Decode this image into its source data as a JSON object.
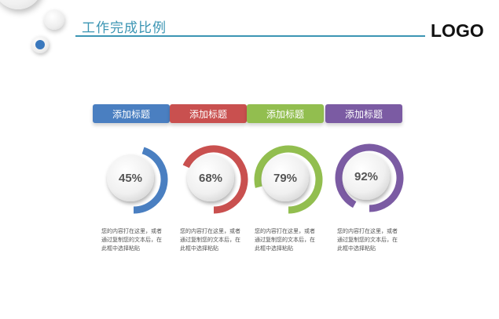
{
  "header": {
    "title": "工作完成比例",
    "logo": "LOGO"
  },
  "colors": {
    "accent": "#3b95b3",
    "blue": "#4a7fc1",
    "red": "#c9504f",
    "green": "#92be4f",
    "purple": "#7b5ba3"
  },
  "items": [
    {
      "tab": "添加标题",
      "percent": "45%",
      "value": 0.45,
      "color": "#4a7fc1",
      "desc": [
        "您的内容打在这里，或者",
        "通过复制您的文本后，在",
        "此框中选择粘贴"
      ]
    },
    {
      "tab": "添加标题",
      "percent": "68%",
      "value": 0.68,
      "color": "#c9504f",
      "desc": [
        "您的内容打在这里，或者",
        "通过复制您的文本后，在",
        "此框中选择粘贴"
      ]
    },
    {
      "tab": "添加标题",
      "percent": "79%",
      "value": 0.79,
      "color": "#92be4f",
      "desc": [
        "您的内容打在这里，或者",
        "通过复制您的文本后，在",
        "此框中选择粘贴"
      ]
    },
    {
      "tab": "添加标题",
      "percent": "92%",
      "value": 0.92,
      "color": "#7b5ba3",
      "desc": [
        "您的内容打在这里，或者",
        "通过复制您的文本后，在",
        "此框中选择粘贴"
      ]
    }
  ]
}
